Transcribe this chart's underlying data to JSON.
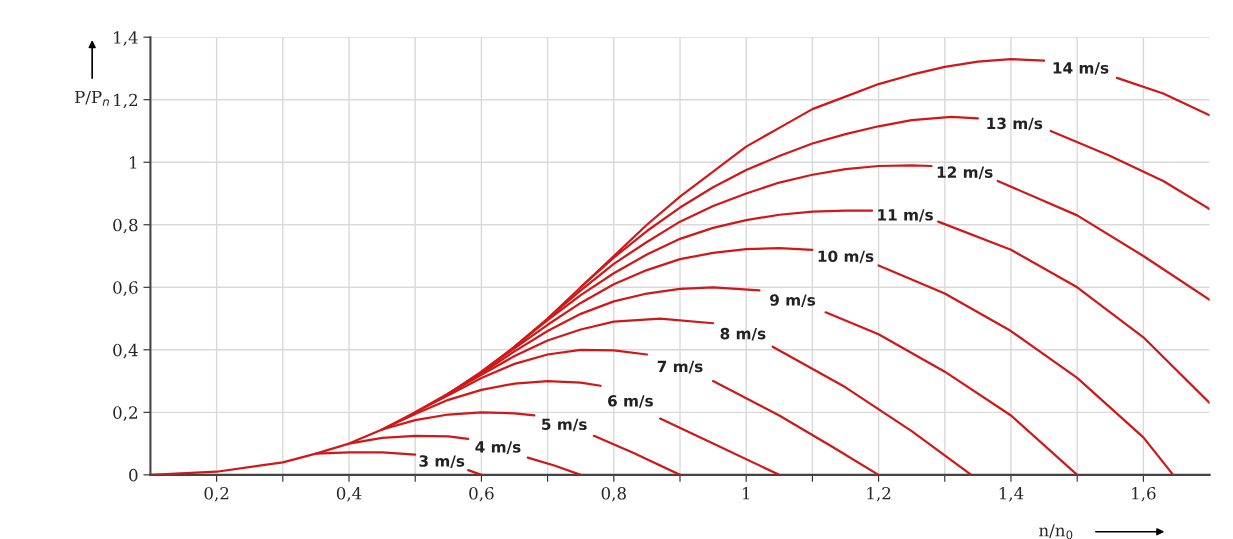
{
  "chart_data": {
    "type": "line",
    "xlabel": "n/n$_{0}$",
    "ylabel": "P/P$_{n}$",
    "xlim": [
      0.1,
      1.7
    ],
    "ylim": [
      0,
      1.4
    ],
    "xticks": [
      {
        "value": 0.2,
        "label": "0,2"
      },
      {
        "value": 0.3,
        "label": null
      },
      {
        "value": 0.4,
        "label": "0,4"
      },
      {
        "value": 0.5,
        "label": null
      },
      {
        "value": 0.6,
        "label": "0,6"
      },
      {
        "value": 0.7,
        "label": null
      },
      {
        "value": 0.8,
        "label": "0,8"
      },
      {
        "value": 0.9,
        "label": null
      },
      1,
      {
        "value": 1.1,
        "label": null
      },
      {
        "value": 1.2,
        "label": "1,2"
      },
      {
        "value": 1.3,
        "label": null
      },
      {
        "value": 1.4,
        "label": "1,4"
      },
      {
        "value": 1.5,
        "label": null
      },
      {
        "value": 1.6,
        "label": "1,6"
      }
    ],
    "yticks": [
      0,
      {
        "value": 0.2,
        "label": "0,2"
      },
      {
        "value": 0.4,
        "label": "0,4"
      },
      {
        "value": 0.6,
        "label": "0,6"
      },
      {
        "value": 0.8,
        "label": "0,8"
      },
      1,
      {
        "value": 1.2,
        "label": "1,2"
      },
      {
        "value": 1.4,
        "label": "1,4"
      }
    ],
    "grid": true,
    "legend": false,
    "line_style": "solid",
    "marker": "none",
    "series": [
      {
        "name": "3 m/s",
        "color": "#d01818",
        "x": [
          0.35,
          0.4,
          0.45,
          0.5,
          0.52,
          0.58,
          0.6
        ],
        "values": [
          0.068,
          0.072,
          0.072,
          0.065,
          null,
          0.015,
          0
        ]
      },
      {
        "name": "4 m/s",
        "color": "#d01818",
        "x": [
          0.4,
          0.45,
          0.5,
          0.55,
          0.58,
          0.61,
          0.67,
          0.71,
          0.75
        ],
        "values": [
          0.1,
          0.118,
          0.125,
          0.123,
          0.115,
          null,
          0.055,
          0.03,
          0
        ]
      },
      {
        "name": "5 m/s",
        "color": "#d01818",
        "x": [
          0.45,
          0.5,
          0.55,
          0.6,
          0.65,
          0.68,
          0.71,
          0.77,
          0.83,
          0.9
        ],
        "values": [
          0.145,
          0.175,
          0.193,
          0.2,
          0.197,
          0.19,
          null,
          0.125,
          0.07,
          0
        ]
      },
      {
        "name": "6 m/s",
        "color": "#d01818",
        "x": [
          0.45,
          0.5,
          0.55,
          0.6,
          0.65,
          0.7,
          0.75,
          0.78,
          0.8,
          0.87,
          0.95,
          1.05
        ],
        "values": [
          0.145,
          0.195,
          0.24,
          0.272,
          0.292,
          0.3,
          0.295,
          0.285,
          null,
          0.18,
          0.1,
          0
        ]
      },
      {
        "name": "7 m/s",
        "color": "#d01818",
        "x": [
          0.5,
          0.55,
          0.6,
          0.65,
          0.7,
          0.75,
          0.8,
          0.85,
          0.87,
          0.95,
          1.05,
          1.13,
          1.2
        ],
        "values": [
          0.2,
          0.255,
          0.31,
          0.355,
          0.385,
          0.4,
          0.398,
          0.385,
          null,
          0.3,
          0.19,
          0.09,
          0
        ]
      },
      {
        "name": "8 m/s",
        "color": "#d01818",
        "x": [
          0.55,
          0.6,
          0.65,
          0.7,
          0.75,
          0.8,
          0.87,
          0.95,
          0.97,
          1.04,
          1.15,
          1.25,
          1.34
        ],
        "values": [
          0.26,
          0.32,
          0.38,
          0.43,
          0.465,
          0.49,
          0.5,
          0.485,
          null,
          0.41,
          0.28,
          0.14,
          0
        ]
      },
      {
        "name": "9 m/s",
        "color": "#d01818",
        "x": [
          0.55,
          0.6,
          0.65,
          0.7,
          0.75,
          0.8,
          0.85,
          0.9,
          0.95,
          1.02,
          1.05,
          1.12,
          1.2,
          1.3,
          1.4,
          1.5
        ],
        "values": [
          0.26,
          0.325,
          0.395,
          0.46,
          0.515,
          0.555,
          0.58,
          0.595,
          0.6,
          0.59,
          null,
          0.52,
          0.45,
          0.33,
          0.19,
          0
        ]
      },
      {
        "name": "10 m/s",
        "color": "#d01818",
        "x": [
          0.6,
          0.65,
          0.7,
          0.75,
          0.8,
          0.85,
          0.9,
          0.95,
          1.0,
          1.05,
          1.1,
          1.13,
          1.2,
          1.3,
          1.4,
          1.5,
          1.6,
          1.645
        ],
        "values": [
          0.33,
          0.405,
          0.48,
          0.55,
          0.61,
          0.655,
          0.69,
          0.71,
          0.722,
          0.725,
          0.72,
          null,
          0.67,
          0.58,
          0.46,
          0.31,
          0.12,
          0
        ]
      },
      {
        "name": "11 m/s",
        "color": "#d01818",
        "x": [
          0.65,
          0.7,
          0.75,
          0.8,
          0.85,
          0.9,
          0.95,
          1.0,
          1.05,
          1.1,
          1.15,
          1.19,
          1.2,
          1.29,
          1.4,
          1.5,
          1.6,
          1.7
        ],
        "values": [
          0.41,
          0.495,
          0.575,
          0.645,
          0.705,
          0.755,
          0.79,
          0.815,
          0.832,
          0.842,
          0.845,
          0.845,
          null,
          0.81,
          0.72,
          0.6,
          0.44,
          0.23
        ]
      },
      {
        "name": "12 m/s",
        "color": "#d01818",
        "x": [
          0.7,
          0.75,
          0.8,
          0.85,
          0.9,
          0.95,
          1.0,
          1.05,
          1.1,
          1.15,
          1.2,
          1.25,
          1.28,
          1.3,
          1.38,
          1.5,
          1.6,
          1.7
        ],
        "values": [
          0.5,
          0.59,
          0.675,
          0.745,
          0.81,
          0.86,
          0.9,
          0.935,
          0.96,
          0.978,
          0.988,
          0.99,
          0.988,
          null,
          0.94,
          0.83,
          0.7,
          0.56
        ]
      },
      {
        "name": "13 m/s",
        "color": "#d01818",
        "x": [
          0.75,
          0.8,
          0.85,
          0.9,
          0.95,
          1.0,
          1.05,
          1.1,
          1.15,
          1.2,
          1.25,
          1.31,
          1.35,
          1.38,
          1.46,
          1.55,
          1.63,
          1.7
        ],
        "values": [
          0.6,
          0.695,
          0.78,
          0.855,
          0.92,
          0.975,
          1.02,
          1.06,
          1.09,
          1.115,
          1.135,
          1.145,
          1.14,
          null,
          1.1,
          1.02,
          0.94,
          0.85
        ]
      },
      {
        "name": "14 m/s",
        "color": "#d01818",
        "x": [
          0.1,
          0.2,
          0.3,
          0.35,
          0.4,
          0.45,
          0.5,
          0.55,
          0.6,
          0.65,
          0.7,
          0.75,
          0.8,
          0.85,
          0.9,
          0.95,
          1.0,
          1.05,
          1.1,
          1.15,
          1.2,
          1.25,
          1.3,
          1.35,
          1.4,
          1.45,
          1.47,
          1.56,
          1.63,
          1.7
        ],
        "values": [
          0,
          0.01,
          0.04,
          0.068,
          0.1,
          0.145,
          0.2,
          0.26,
          0.33,
          0.41,
          0.5,
          0.6,
          0.7,
          0.8,
          0.89,
          0.97,
          1.05,
          1.11,
          1.17,
          1.21,
          1.25,
          1.28,
          1.305,
          1.322,
          1.33,
          1.325,
          null,
          1.27,
          1.22,
          1.15
        ]
      }
    ]
  }
}
